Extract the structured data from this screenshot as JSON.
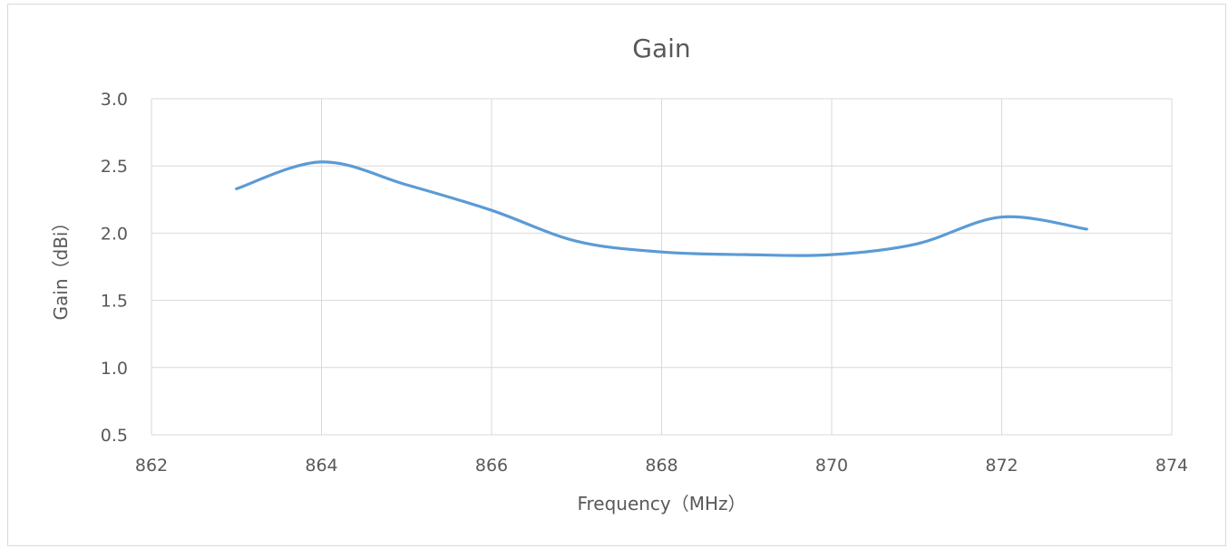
{
  "chart_data": {
    "type": "line",
    "title": "Gain",
    "xlabel": "Frequency（MHz）",
    "ylabel": "Gain（dBi）",
    "xlim": [
      862,
      874
    ],
    "ylim": [
      0.5,
      3.0
    ],
    "x_ticks": [
      "862",
      "864",
      "866",
      "868",
      "870",
      "872",
      "874"
    ],
    "y_ticks": [
      "0.5",
      "1.0",
      "1.5",
      "2.0",
      "2.5",
      "3.0"
    ],
    "grid": true,
    "legend": "none",
    "series": [
      {
        "color": "#5b9bd5",
        "points": [
          {
            "x": 863,
            "y": 2.33
          },
          {
            "x": 864,
            "y": 2.53
          },
          {
            "x": 865,
            "y": 2.36
          },
          {
            "x": 866,
            "y": 2.17
          },
          {
            "x": 867,
            "y": 1.94
          },
          {
            "x": 868,
            "y": 1.86
          },
          {
            "x": 869,
            "y": 1.84
          },
          {
            "x": 870,
            "y": 1.84
          },
          {
            "x": 871,
            "y": 1.92
          },
          {
            "x": 872,
            "y": 2.12
          },
          {
            "x": 873,
            "y": 2.03
          }
        ]
      }
    ]
  }
}
